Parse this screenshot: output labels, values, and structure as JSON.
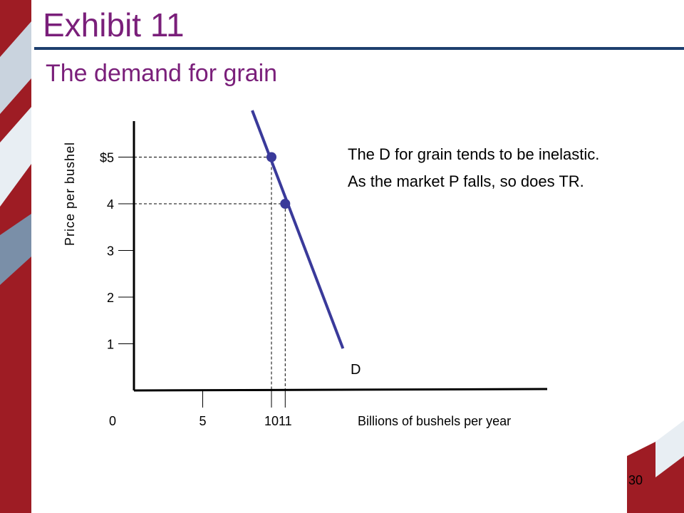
{
  "slide": {
    "title": "Exhibit 11",
    "subtitle": "The demand for grain",
    "notes": [
      "The D for grain tends to be inelastic.",
      "As the market P falls, so does TR."
    ],
    "page_number": "30",
    "colors": {
      "title": "#7a1f7a",
      "rule": "#1e3f6e",
      "accent_red": "#9e1c24",
      "line": "#3a3a9a"
    }
  },
  "chart_data": {
    "type": "line",
    "title": "",
    "xlabel": "Billions of bushels per year",
    "ylabel": "Price per bushel",
    "x_ticks": [
      {
        "value": 0,
        "label": "0"
      },
      {
        "value": 5,
        "label": "5"
      },
      {
        "value": 10,
        "label": "10"
      },
      {
        "value": 11,
        "label": "11"
      }
    ],
    "y_ticks": [
      {
        "value": 1,
        "label": "1"
      },
      {
        "value": 2,
        "label": "2"
      },
      {
        "value": 3,
        "label": "3"
      },
      {
        "value": 4,
        "label": "4"
      },
      {
        "value": 5,
        "label": "$5"
      }
    ],
    "series": [
      {
        "name": "D",
        "points": [
          {
            "x": 8.6,
            "y": 6.0
          },
          {
            "x": 15.2,
            "y": 0.9
          }
        ]
      }
    ],
    "highlighted_points": [
      {
        "x": 10,
        "y": 5
      },
      {
        "x": 11,
        "y": 4
      }
    ],
    "grid": false
  }
}
